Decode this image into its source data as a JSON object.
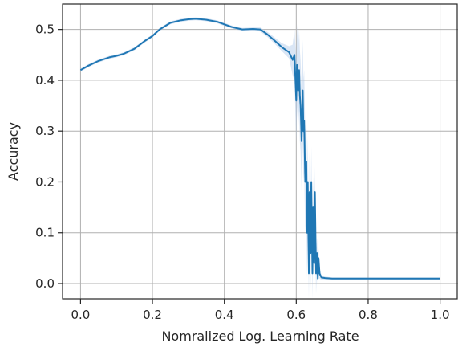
{
  "chart_data": {
    "type": "line",
    "title": "",
    "xlabel": "Nomralized Log. Learning Rate",
    "ylabel": "Accuracy",
    "xlim": [
      -0.05,
      1.05
    ],
    "ylim": [
      -0.03,
      0.55
    ],
    "xticks": [
      0.0,
      0.2,
      0.4,
      0.6,
      0.8,
      1.0
    ],
    "xtick_labels": [
      "0.0",
      "0.2",
      "0.4",
      "0.6",
      "0.8",
      "1.0"
    ],
    "yticks": [
      0.0,
      0.1,
      0.2,
      0.3,
      0.4,
      0.5
    ],
    "ytick_labels": [
      "0.0",
      "0.1",
      "0.2",
      "0.3",
      "0.4",
      "0.5"
    ],
    "grid": true,
    "line_color": "#1f77b4",
    "band_color": "#aec7e8",
    "series": [
      {
        "x": [
          0.0,
          0.02,
          0.05,
          0.08,
          0.1,
          0.12,
          0.15,
          0.18,
          0.2,
          0.22,
          0.25,
          0.28,
          0.3,
          0.32,
          0.35,
          0.38,
          0.4,
          0.42,
          0.45,
          0.48,
          0.5,
          0.52,
          0.54,
          0.56,
          0.58,
          0.59,
          0.595,
          0.6,
          0.602,
          0.605,
          0.608,
          0.61,
          0.612,
          0.615,
          0.618,
          0.62,
          0.622,
          0.625,
          0.628,
          0.63,
          0.632,
          0.635,
          0.637,
          0.64,
          0.642,
          0.645,
          0.647,
          0.65,
          0.652,
          0.655,
          0.658,
          0.66,
          0.662,
          0.665,
          0.67,
          0.68,
          0.7,
          0.75,
          0.8,
          0.85,
          0.9,
          0.95,
          1.0
        ],
        "y": [
          0.42,
          0.428,
          0.438,
          0.445,
          0.448,
          0.452,
          0.462,
          0.478,
          0.487,
          0.5,
          0.513,
          0.518,
          0.52,
          0.521,
          0.519,
          0.515,
          0.51,
          0.505,
          0.5,
          0.501,
          0.5,
          0.49,
          0.478,
          0.465,
          0.455,
          0.44,
          0.45,
          0.36,
          0.43,
          0.38,
          0.42,
          0.37,
          0.35,
          0.28,
          0.38,
          0.3,
          0.32,
          0.2,
          0.24,
          0.1,
          0.2,
          0.02,
          0.18,
          0.06,
          0.2,
          0.02,
          0.15,
          0.04,
          0.18,
          0.02,
          0.06,
          0.01,
          0.05,
          0.02,
          0.012,
          0.011,
          0.01,
          0.01,
          0.01,
          0.01,
          0.01,
          0.01,
          0.01
        ],
        "band": [
          0.003,
          0.003,
          0.003,
          0.003,
          0.003,
          0.003,
          0.003,
          0.003,
          0.003,
          0.003,
          0.003,
          0.003,
          0.003,
          0.003,
          0.003,
          0.003,
          0.003,
          0.003,
          0.003,
          0.003,
          0.004,
          0.005,
          0.006,
          0.008,
          0.012,
          0.03,
          0.05,
          0.08,
          0.08,
          0.08,
          0.08,
          0.09,
          0.09,
          0.1,
          0.1,
          0.1,
          0.1,
          0.1,
          0.1,
          0.09,
          0.09,
          0.08,
          0.08,
          0.07,
          0.07,
          0.06,
          0.06,
          0.05,
          0.05,
          0.04,
          0.03,
          0.02,
          0.02,
          0.01,
          0.005,
          0.003,
          0.002,
          0.002,
          0.002,
          0.002,
          0.002,
          0.002,
          0.002
        ]
      }
    ]
  }
}
